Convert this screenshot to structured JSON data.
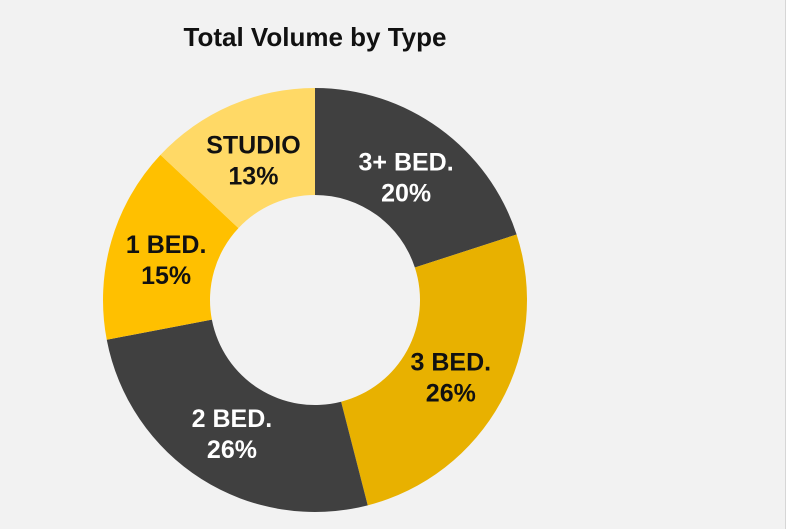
{
  "chart_data": {
    "type": "pie",
    "title": "Total Volume by Type",
    "donut": true,
    "slices": [
      {
        "label": "3+ BED.",
        "value": 20,
        "value_label": "20%",
        "color": "#404040",
        "text_color": "#ffffff"
      },
      {
        "label": "3 BED.",
        "value": 26,
        "value_label": "26%",
        "color": "#e8b100",
        "text_color": "#111111"
      },
      {
        "label": "2 BED.",
        "value": 26,
        "value_label": "26%",
        "color": "#404040",
        "text_color": "#ffffff"
      },
      {
        "label": "1 BED.",
        "value": 15,
        "value_label": "15%",
        "color": "#ffc000",
        "text_color": "#111111"
      },
      {
        "label": "STUDIO",
        "value": 13,
        "value_label": "13%",
        "color": "#ffd966",
        "text_color": "#111111"
      }
    ]
  }
}
